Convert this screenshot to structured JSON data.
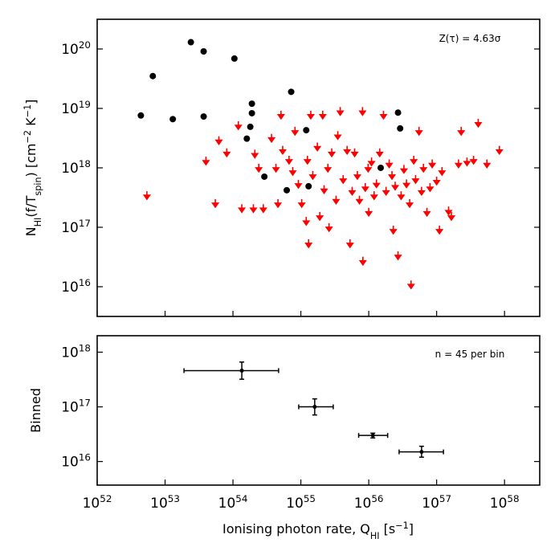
{
  "chart_data": [
    {
      "type": "scatter",
      "ylabel": "N_{HI}(f/T_{spin}) [cm^{−2} K^{−1}]",
      "annotation": "Z(τ) = 4.63σ",
      "xscale": "log",
      "yscale": "log",
      "xlim": [
        1e+52,
        3.3e+58
      ],
      "ylim": [
        3160000000000000.0,
        3.16e+20
      ],
      "yticks": [
        {
          "value": 1e+16,
          "label": "10^{16}"
        },
        {
          "value": 1e+17,
          "label": "10^{17}"
        },
        {
          "value": 1e+18,
          "label": "10^{18}"
        },
        {
          "value": 1e+19,
          "label": "10^{19}"
        },
        {
          "value": 1e+20,
          "label": "10^{20}"
        }
      ],
      "series": [
        {
          "color": "#000000",
          "marker": "circle",
          "x": [
            4.4e+52,
            6.6e+52,
            1.3e+53,
            2.4e+53,
            3.7e+53,
            3.7e+53,
            1.05e+54,
            1.6e+54,
            1.8e+54,
            1.9e+54,
            1.9e+54,
            2.9e+54,
            6.2e+54,
            7.2e+54,
            1.2e+55,
            1.3e+55,
            1.5e+56,
            2.7e+56,
            2.9e+56
          ],
          "values": [
            7.6e+18,
            3.5e+19,
            6.6e+18,
            1.3e+20,
            9.1e+19,
            7.3e+18,
            6.9e+19,
            3.1e+18,
            4.9e+18,
            8.3e+18,
            1.2e+19,
            7.1e+17,
            4.2e+17,
            1.9e+19,
            4.3e+18,
            4.9e+17,
            1e+18,
            8.5e+18,
            4.6e+18
          ]
        },
        {
          "color": "#ff0000",
          "marker": "upper-limit",
          "x": [
            5.4e+52,
            4e+53,
            5.5e+53,
            6.2e+53,
            8.1e+53,
            1.2e+54,
            1.35e+54,
            2e+54,
            2.1e+54,
            2.4e+54,
            2.8e+54,
            3.7e+54,
            4.3e+54,
            4.6e+54,
            5.1e+54,
            5.4e+54,
            6.7e+54,
            7.6e+54,
            8.2e+54,
            9.2e+54,
            1.03e+55,
            1.2e+55,
            1.25e+55,
            1.3e+55,
            1.4e+55,
            1.5e+55,
            1.75e+55,
            1.9e+55,
            2.1e+55,
            2.2e+55,
            2.5e+55,
            2.6e+55,
            2.85e+55,
            3.3e+55,
            3.5e+55,
            3.8e+55,
            4.2e+55,
            4.8e+55,
            5.3e+55,
            5.7e+55,
            6.2e+55,
            6.8e+55,
            7.3e+55,
            8.1e+55,
            8.2e+55,
            8.9e+55,
            9.8e+55,
            1e+56,
            1.1e+56,
            1.2e+56,
            1.3e+56,
            1.45e+56,
            1.65e+56,
            1.8e+56,
            2e+56,
            2.2e+56,
            2.3e+56,
            2.45e+56,
            2.7e+56,
            3e+56,
            3.3e+56,
            3.6e+56,
            4e+56,
            4.2e+56,
            4.6e+56,
            4.9e+56,
            5.5e+56,
            6e+56,
            6.4e+56,
            7.2e+56,
            8e+56,
            8.6e+56,
            1e+57,
            1.1e+57,
            1.2e+57,
            1.5e+57,
            1.65e+57,
            2.1e+57,
            2.3e+57,
            2.8e+57,
            3.5e+57,
            4.1e+57,
            5.5e+57,
            8.4e+57
          ],
          "values": [
            3.8e+17,
            1.45e+18,
            2.8e+17,
            3.2e+18,
            2e+18,
            5.7e+18,
            2.3e+17,
            2.3e+17,
            1.9e+18,
            1.1e+18,
            2.3e+17,
            3.5e+18,
            1.1e+18,
            2.8e+17,
            8.6e+18,
            2.2e+18,
            1.5e+18,
            9.7e+17,
            4.6e+18,
            5.9e+17,
            2.8e+17,
            1.4e+17,
            1.5e+18,
            5.9e+16,
            8.6e+18,
            8.3e+17,
            2.5e+18,
            1.7e+17,
            8.6e+18,
            4.8e+17,
            1.1e+18,
            1.1e+17,
            2e+18,
            3.2e+17,
            3.9e+18,
            9.9e+18,
            7.1e+17,
            2.2e+18,
            5.9e+16,
            4.5e+17,
            2e+18,
            8.3e+17,
            3.2e+17,
            9.9e+18,
            3e+16,
            5.2e+17,
            1.1e+18,
            2e+17,
            1.4e+18,
            3.8e+17,
            6e+17,
            2e+18,
            8.6e+18,
            4.5e+17,
            1.3e+18,
            8.3e+17,
            1e+17,
            5.5e+17,
            3.7e+16,
            3.8e+17,
            1.05e+18,
            6e+17,
            2.8e+17,
            1.2e+16,
            1.5e+18,
            7.1e+17,
            4.6e+18,
            4.5e+17,
            1.1e+18,
            2e+17,
            5.2e+17,
            1.3e+18,
            6.7e+17,
            1e+17,
            9.7e+17,
            2.1e+17,
            1.7e+17,
            1.3e+18,
            4.6e+18,
            1.4e+18,
            1.5e+18,
            6.3e+18,
            1.3e+18,
            2.2e+18
          ]
        }
      ]
    },
    {
      "type": "errorbar",
      "xlabel": "Ionising photon rate, Q_{HI} [s^{−1}]",
      "ylabel": "Binned",
      "annotation": "n = 45 per bin",
      "xscale": "log",
      "yscale": "log",
      "xlim": [
        1e+52,
        3.3e+58
      ],
      "ylim": [
        3700000000000000.0,
        2e+18
      ],
      "xticks": [
        {
          "value": 1e+52,
          "label": "10^{52}"
        },
        {
          "value": 1e+53,
          "label": "10^{53}"
        },
        {
          "value": 1e+54,
          "label": "10^{54}"
        },
        {
          "value": 1e+55,
          "label": "10^{55}"
        },
        {
          "value": 1e+56,
          "label": "10^{56}"
        },
        {
          "value": 1e+57,
          "label": "10^{57}"
        },
        {
          "value": 1e+58,
          "label": "10^{58}"
        }
      ],
      "yticks": [
        {
          "value": 1e+16,
          "label": "10^{16}"
        },
        {
          "value": 1e+17,
          "label": "10^{17}"
        },
        {
          "value": 1e+18,
          "label": "10^{18}"
        }
      ],
      "color": "#000000",
      "x": [
        1.35e+54,
        1.6e+55,
        1.15e+56,
        6e+56
      ],
      "x_lower": [
        1.9e+53,
        9.3e+54,
        7.1e+55,
        2.8e+56
      ],
      "x_upper": [
        4.7e+54,
        3e+55,
        1.9e+56,
        1.26e+57
      ],
      "values": [
        4.6e+17,
        1e+17,
        3e+16,
        1.5e+16
      ],
      "lower": [
        3.2e+17,
        7.1e+16,
        2.7e+16,
        1.2e+16
      ],
      "upper": [
        6.6e+17,
        1.4e+17,
        3.3e+16,
        1.9e+16
      ]
    }
  ]
}
